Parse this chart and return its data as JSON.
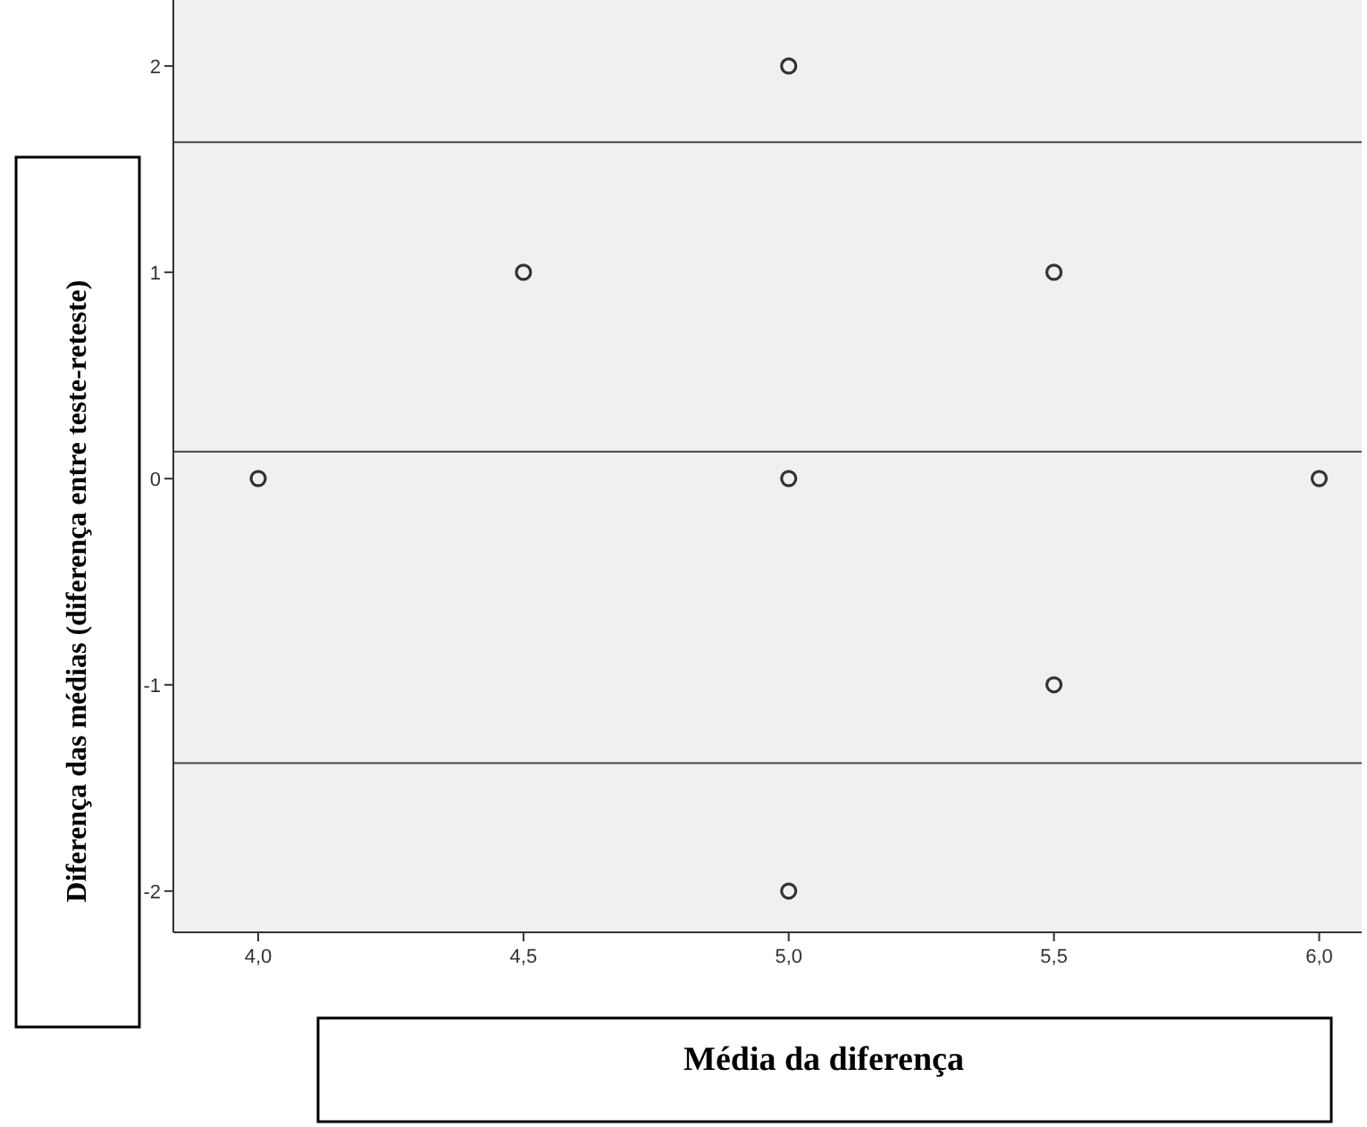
{
  "chart_data": {
    "type": "scatter",
    "xlabel": "Média da diferença",
    "ylabel": "Diferença das médias (diferença entre teste-reteste)",
    "x": [
      4.0,
      4.5,
      5.0,
      5.0,
      5.0,
      5.5,
      5.5,
      6.0
    ],
    "values": [
      0,
      1,
      2,
      0,
      -2,
      1,
      -1,
      0
    ],
    "color": "#333333",
    "marker": "circle",
    "grid": false,
    "xlim": [
      3.84,
      6.08
    ],
    "ylim": [
      -2.2,
      2.32
    ],
    "xticks": [
      {
        "value": 4,
        "label": "4,0"
      },
      {
        "value": 4.5,
        "label": "4,5"
      },
      {
        "value": 5,
        "label": "5,0"
      },
      {
        "value": 5.5,
        "label": "5,5"
      },
      {
        "value": 6,
        "label": "6,0"
      }
    ],
    "yticks": [
      -2,
      -1,
      0,
      1,
      2
    ],
    "ref_lines": [
      {
        "axis": "y",
        "value": 1.63
      },
      {
        "axis": "y",
        "value": 0.13
      },
      {
        "axis": "y",
        "value": -1.38
      }
    ]
  }
}
